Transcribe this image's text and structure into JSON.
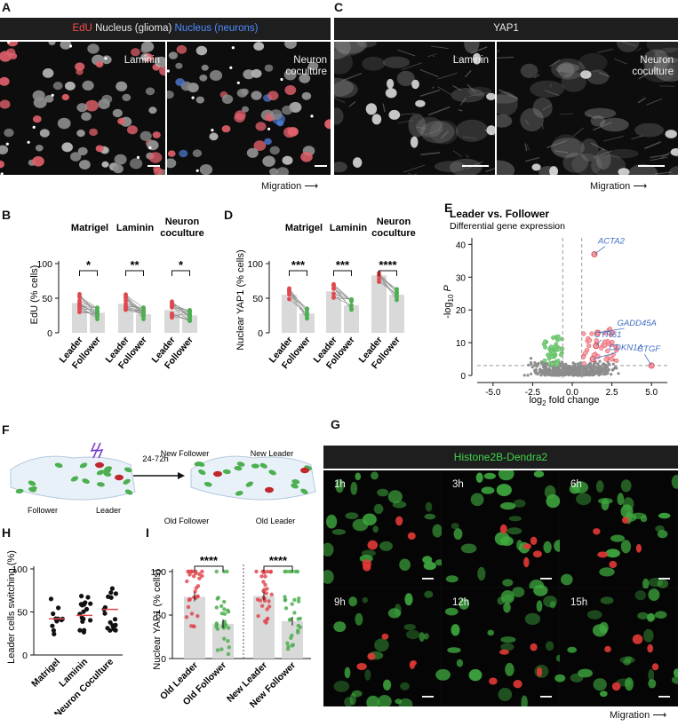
{
  "panels": {
    "A": {
      "label": "A",
      "header": {
        "edu": "EdU",
        "glioma": "Nucleus (glioma)",
        "neurons": "Nucleus (neurons)"
      },
      "inset_left": "Laminin",
      "inset_right_1": "Neuron",
      "inset_right_2": "coculture",
      "migration": "Migration"
    },
    "C": {
      "label": "C",
      "header": "YAP1",
      "inset_left": "Laminin",
      "inset_right_1": "Neuron",
      "inset_right_2": "coculture",
      "migration": "Migration"
    },
    "B": {
      "label": "B",
      "ylabel": "EdU (% cells)",
      "groups": [
        "Matrigel",
        "Laminin",
        "Neuron",
        "coculture"
      ],
      "sig": [
        "*",
        "**",
        "*"
      ],
      "ticks": [
        "0",
        "50",
        "100"
      ],
      "x": [
        "Leader",
        "Follower"
      ]
    },
    "D": {
      "label": "D",
      "ylabel": "Nuclear YAP1 (% cells)",
      "groups": [
        "Matrigel",
        "Laminin",
        "Neuron",
        "coculture"
      ],
      "sig": [
        "***",
        "***",
        "****"
      ],
      "ticks": [
        "0",
        "50",
        "100"
      ],
      "x": [
        "Leader",
        "Follower"
      ]
    },
    "E": {
      "label": "E",
      "title": "Leader vs. Follower",
      "subtitle": "Differential gene expression",
      "ylabel_pre": "-log",
      "ylabel_sub": "10",
      "ylabel_post": " P",
      "xlabel_pre": "log",
      "xlabel_sub": "2",
      "xlabel_post": " fold change",
      "genes": [
        "ACTA2",
        "GADD45A",
        "CYR61",
        "CDKN1A",
        "CTGF"
      ],
      "yticks": [
        "0",
        "10",
        "20",
        "30",
        "40"
      ],
      "xticks": [
        "-5.0",
        "-2.5",
        "0.0",
        "2.5",
        "5.0"
      ]
    },
    "F": {
      "label": "F",
      "time": "24-72h",
      "follower": "Follower",
      "leader": "Leader",
      "new_follower": "New Follower",
      "new_leader": "New Leader",
      "old_follower": "Old Follower",
      "old_leader": "Old Leader"
    },
    "G": {
      "label": "G",
      "header": "Histone2B-Dendra2",
      "times": [
        "1h",
        "3h",
        "6h",
        "9h",
        "12h",
        "15h"
      ],
      "migration": "Migration"
    },
    "H": {
      "label": "H",
      "ylabel": "Leader cells switching (%)",
      "ticks": [
        "0",
        "50",
        "100"
      ],
      "x": [
        "Matrigel",
        "Laminin",
        "Neuron Coculture"
      ]
    },
    "I": {
      "label": "I",
      "ylabel": "Nuclear YAP1 (% cells)",
      "sig": [
        "****",
        "****"
      ],
      "ticks": [
        "0",
        "50",
        "100"
      ],
      "x": [
        "Old Leader",
        "Old Follower",
        "New Leader",
        "New Follower"
      ]
    }
  },
  "colors": {
    "red": "#e0484f",
    "green": "#4caf50",
    "blue": "#3f6fc4",
    "bar_gray": "#d9d9d9"
  },
  "chart_data": [
    {
      "type": "bar",
      "panel": "B",
      "ylabel": "EdU (% cells)",
      "ylim": [
        0,
        100
      ],
      "categories": [
        "Matrigel Leader",
        "Matrigel Follower",
        "Laminin Leader",
        "Laminin Follower",
        "Neuron coculture Leader",
        "Neuron coculture Follower"
      ],
      "values": [
        43,
        29,
        42,
        27,
        33,
        25
      ]
    },
    {
      "type": "bar",
      "panel": "D",
      "ylabel": "Nuclear YAP1 (% cells)",
      "ylim": [
        0,
        100
      ],
      "categories": [
        "Matrigel Leader",
        "Matrigel Follower",
        "Laminin Leader",
        "Laminin Follower",
        "Neuron coculture Leader",
        "Neuron coculture Follower"
      ],
      "values": [
        55,
        28,
        60,
        40,
        83,
        55
      ]
    },
    {
      "type": "scatter",
      "panel": "E",
      "title": "Leader vs. Follower",
      "xlim": [
        -6,
        6
      ],
      "ylim": [
        0,
        42
      ],
      "labeled_points": [
        {
          "gene": "ACTA2",
          "x": 1.4,
          "y": 37
        },
        {
          "gene": "GADD45A",
          "x": 1.6,
          "y": 13
        },
        {
          "gene": "CYR61",
          "x": 1.5,
          "y": 9
        },
        {
          "gene": "CDKN1A",
          "x": 1.3,
          "y": 5
        },
        {
          "gene": "CTGF",
          "x": 5.0,
          "y": 3
        }
      ]
    },
    {
      "type": "scatter",
      "panel": "H",
      "ylabel": "Leader cells switching (%)",
      "ylim": [
        0,
        100
      ],
      "categories": [
        "Matrigel",
        "Laminin",
        "Neuron Coculture"
      ],
      "means": [
        42,
        46,
        53
      ]
    },
    {
      "type": "bar",
      "panel": "I",
      "ylabel": "Nuclear YAP1 (% cells)",
      "ylim": [
        0,
        100
      ],
      "categories": [
        "Old Leader",
        "Old Follower",
        "New Leader",
        "New Follower"
      ],
      "values": [
        71,
        40,
        72,
        43
      ]
    }
  ]
}
